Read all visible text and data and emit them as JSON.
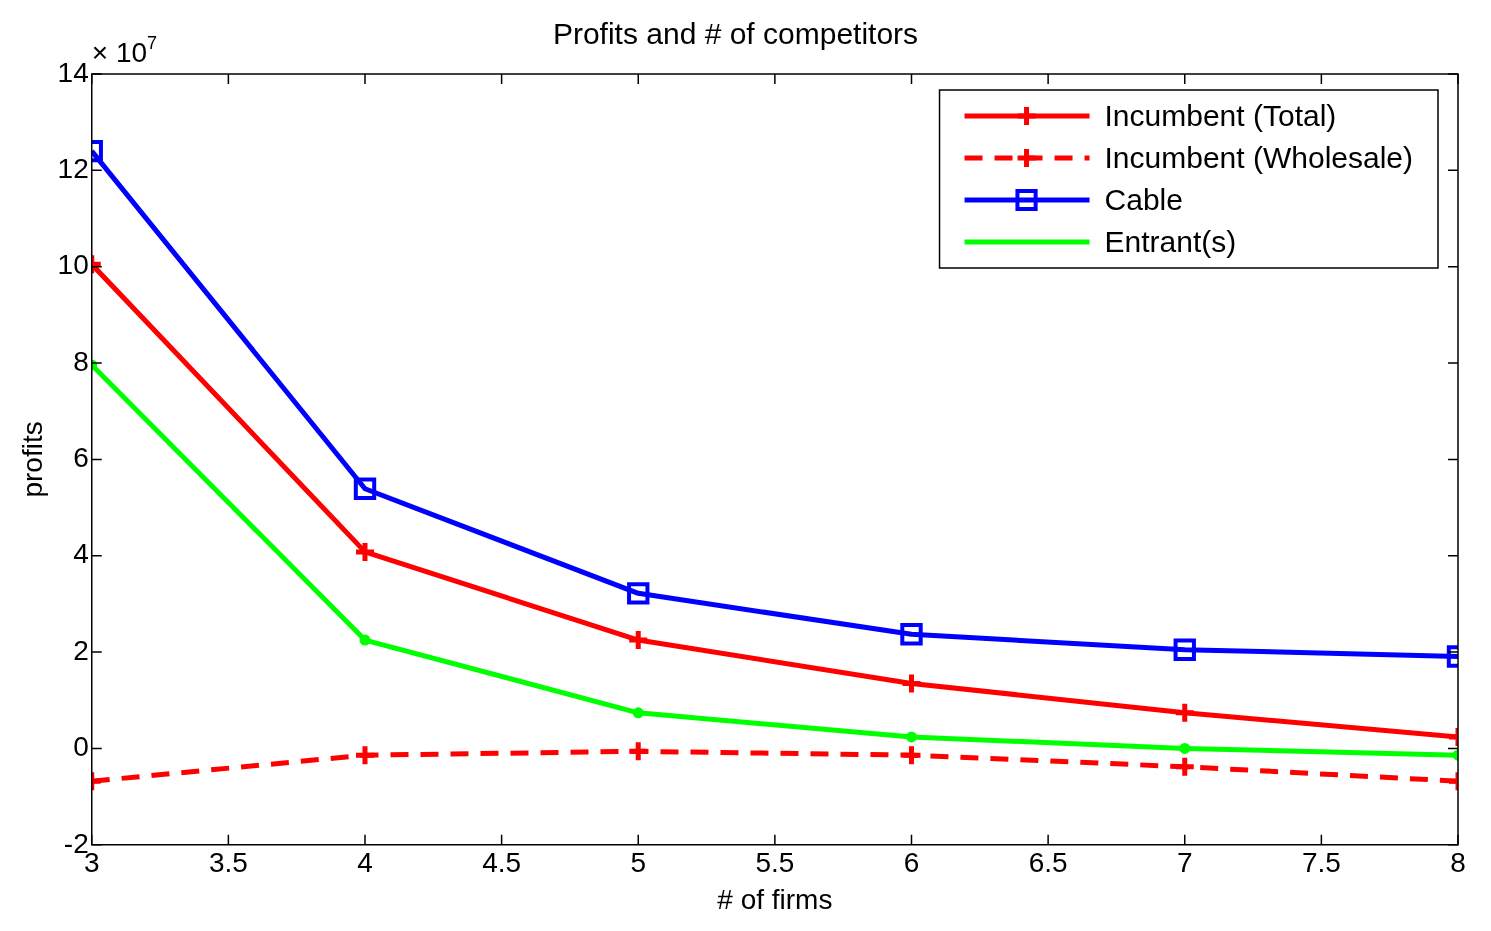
{
  "chart_data": {
    "type": "line",
    "title": "Profits and # of competitors",
    "xlabel": "# of firms",
    "ylabel": "profits",
    "annotations": [
      "× 10$^{7}$"
    ],
    "x": [
      3,
      4,
      5,
      6,
      7,
      8
    ],
    "xlim": [
      3,
      8
    ],
    "xticks": [
      3,
      3.5,
      4,
      4.5,
      5,
      5.5,
      6,
      6.5,
      7,
      7.5,
      8
    ],
    "ylim": [
      -2,
      14
    ],
    "yticks": [
      -2,
      0,
      2,
      4,
      6,
      8,
      10,
      12,
      14
    ],
    "grid": false,
    "legend": "top right",
    "series": [
      {
        "name": "Incumbent (Total)",
        "color": "#ff0000",
        "marker": "cross",
        "line_style": "solid",
        "values": [
          10.05,
          4.08,
          2.25,
          1.35,
          0.74,
          0.24
        ]
      },
      {
        "name": "Incumbent (Wholesale)",
        "color": "#ff0000",
        "marker": "cross",
        "line_style": "dashed",
        "values": [
          -0.68,
          -0.14,
          -0.06,
          -0.14,
          -0.38,
          -0.68
        ]
      },
      {
        "name": "Cable",
        "color": "#0000ff",
        "marker": "square",
        "line_style": "solid",
        "values": [
          12.4,
          5.39,
          3.22,
          2.37,
          2.05,
          1.91
        ]
      },
      {
        "name": "Entrant(s)",
        "color": "#00ff00",
        "marker": "circle",
        "line_style": "solid",
        "values": [
          7.96,
          2.25,
          0.74,
          0.24,
          0,
          -0.14
        ]
      }
    ]
  }
}
